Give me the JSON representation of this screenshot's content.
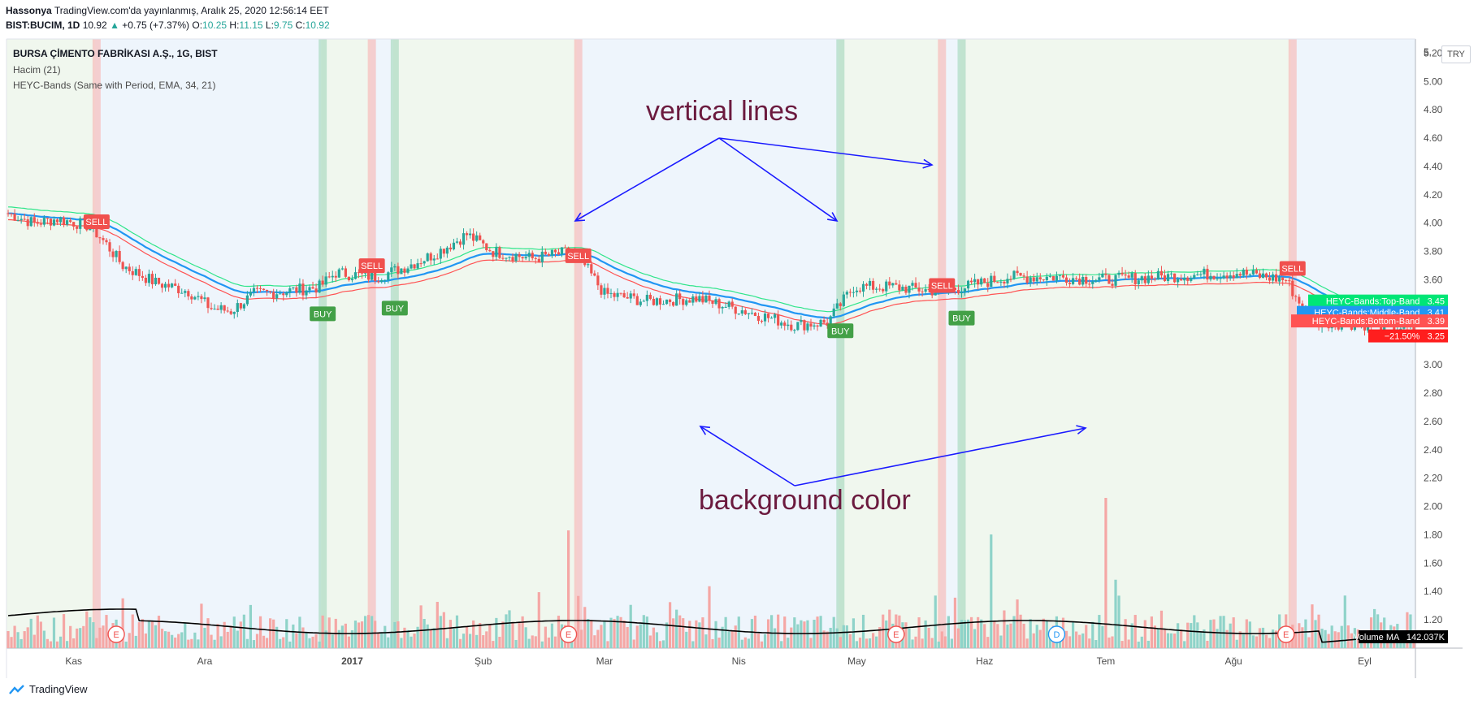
{
  "header": {
    "author": "Hassonya",
    "published": "TradingView.com'da yayınlanmış, Aralık 25, 2020 12:56:14 EET",
    "symbol": "BIST:BUCIM, 1D",
    "last": "10.92",
    "change_arrow": "▲",
    "change": "+0.75 (+7.37%)",
    "o_label": "O:",
    "o_value": "10.25",
    "h_label": "H:",
    "h_value": "11.15",
    "l_label": "L:",
    "l_value": "9.75",
    "c_label": "C:",
    "c_value": "10.92"
  },
  "legend": {
    "title": "BURSA ÇİMENTO FABRİKASI A.Ş., 1G, BIST",
    "volume": "Hacim (21)",
    "indicator": "HEYC-Bands (Same with Period, EMA, 34, 21)"
  },
  "currency": "TRY",
  "annotations": {
    "vertical_lines": "vertical lines",
    "background_color": "background color"
  },
  "footer": {
    "brand": "TradingView",
    "logo_icon": "tradingview-logo-icon"
  },
  "colors": {
    "up": "#26a69a",
    "down": "#ef5350",
    "green_bg": "#f0f7ee",
    "blue_bg": "#eef5fc",
    "top_band": "#2ee58a",
    "middle_band": "#2196f3",
    "bottom_band": "#ff5252",
    "annotation": "#6b1a3e",
    "arrow": "#1a1aff"
  },
  "chart_data": {
    "type": "candlestick",
    "y_axis": {
      "range": [
        1.0,
        5.3
      ],
      "ticks": [
        "5.20",
        "5.00",
        "4.80",
        "4.60",
        "4.40",
        "4.20",
        "4.00",
        "3.80",
        "3.60",
        "3.40",
        "3.20",
        "3.00",
        "2.80",
        "2.60",
        "2.40",
        "2.20",
        "2.00",
        "1.80",
        "1.60",
        "1.40",
        "1.20"
      ],
      "top_partial_label": "5."
    },
    "x_axis": {
      "labels": [
        "Kas",
        "Ara",
        "2017",
        "Şub",
        "Mar",
        "Nis",
        "May",
        "Haz",
        "Tem",
        "Ağu",
        "Eyl"
      ],
      "label_days": [
        20,
        60,
        105,
        145,
        182,
        223,
        259,
        298,
        335,
        374,
        414
      ]
    },
    "bar_count": 430,
    "events": [
      {
        "label": "E",
        "day": 33
      },
      {
        "label": "E",
        "day": 171
      },
      {
        "label": "E",
        "day": 271
      },
      {
        "label": "D",
        "day": 320
      },
      {
        "label": "E",
        "day": 390
      }
    ],
    "signals": [
      {
        "label": "SELL",
        "day": 27,
        "price": 4.01,
        "side": "sell"
      },
      {
        "label": "BUY",
        "day": 96,
        "price": 3.36,
        "side": "buy"
      },
      {
        "label": "SELL",
        "day": 111,
        "price": 3.7,
        "side": "sell"
      },
      {
        "label": "BUY",
        "day": 118,
        "price": 3.4,
        "side": "buy"
      },
      {
        "label": "SELL",
        "day": 174,
        "price": 3.77,
        "side": "sell"
      },
      {
        "label": "BUY",
        "day": 254,
        "price": 3.24,
        "side": "buy"
      },
      {
        "label": "SELL",
        "day": 285,
        "price": 3.56,
        "side": "sell"
      },
      {
        "label": "BUY",
        "day": 291,
        "price": 3.33,
        "side": "buy"
      },
      {
        "label": "SELL",
        "day": 392,
        "price": 3.68,
        "side": "sell"
      }
    ],
    "vertical_lines": [
      {
        "day": 27,
        "side": "sell"
      },
      {
        "day": 96,
        "side": "buy"
      },
      {
        "day": 111,
        "side": "sell"
      },
      {
        "day": 118,
        "side": "buy"
      },
      {
        "day": 174,
        "side": "sell"
      },
      {
        "day": 254,
        "side": "buy"
      },
      {
        "day": 285,
        "side": "sell"
      },
      {
        "day": 291,
        "side": "buy"
      },
      {
        "day": 392,
        "side": "sell"
      }
    ],
    "background_regions": [
      {
        "from": 0,
        "to": 27,
        "side": "buy"
      },
      {
        "from": 27,
        "to": 96,
        "side": "sell"
      },
      {
        "from": 96,
        "to": 111,
        "side": "buy"
      },
      {
        "from": 111,
        "to": 118,
        "side": "sell"
      },
      {
        "from": 118,
        "to": 174,
        "side": "buy"
      },
      {
        "from": 174,
        "to": 254,
        "side": "sell"
      },
      {
        "from": 254,
        "to": 285,
        "side": "buy"
      },
      {
        "from": 285,
        "to": 291,
        "side": "sell"
      },
      {
        "from": 291,
        "to": 392,
        "side": "buy"
      },
      {
        "from": 392,
        "to": 430,
        "side": "sell"
      }
    ],
    "price_path": [
      [
        0,
        4.07
      ],
      [
        8,
        4.0
      ],
      [
        15,
        4.03
      ],
      [
        25,
        3.98
      ],
      [
        30,
        3.85
      ],
      [
        35,
        3.7
      ],
      [
        45,
        3.58
      ],
      [
        55,
        3.52
      ],
      [
        62,
        3.4
      ],
      [
        68,
        3.38
      ],
      [
        75,
        3.5
      ],
      [
        85,
        3.52
      ],
      [
        95,
        3.55
      ],
      [
        100,
        3.65
      ],
      [
        112,
        3.62
      ],
      [
        120,
        3.68
      ],
      [
        130,
        3.78
      ],
      [
        140,
        3.92
      ],
      [
        148,
        3.8
      ],
      [
        160,
        3.75
      ],
      [
        172,
        3.8
      ],
      [
        176,
        3.7
      ],
      [
        182,
        3.5
      ],
      [
        195,
        3.45
      ],
      [
        210,
        3.47
      ],
      [
        225,
        3.38
      ],
      [
        240,
        3.28
      ],
      [
        250,
        3.3
      ],
      [
        258,
        3.55
      ],
      [
        270,
        3.55
      ],
      [
        284,
        3.52
      ],
      [
        292,
        3.55
      ],
      [
        305,
        3.62
      ],
      [
        320,
        3.62
      ],
      [
        335,
        3.6
      ],
      [
        350,
        3.62
      ],
      [
        375,
        3.65
      ],
      [
        390,
        3.6
      ],
      [
        395,
        3.4
      ],
      [
        400,
        3.3
      ],
      [
        420,
        3.28
      ],
      [
        430,
        3.25
      ]
    ],
    "series": [
      {
        "name": "HEYC-Bands:Top-Band",
        "last": "3.45"
      },
      {
        "name": "HEYC-Bands:Middle-Band",
        "last": "3.41"
      },
      {
        "name": "HEYC-Bands:Bottom-Band",
        "last": "3.39"
      }
    ],
    "price_label": {
      "pct": "−21.50%",
      "value": "3.25"
    },
    "volume_ma": {
      "name": "Volume MA",
      "last": "142.037K"
    }
  }
}
